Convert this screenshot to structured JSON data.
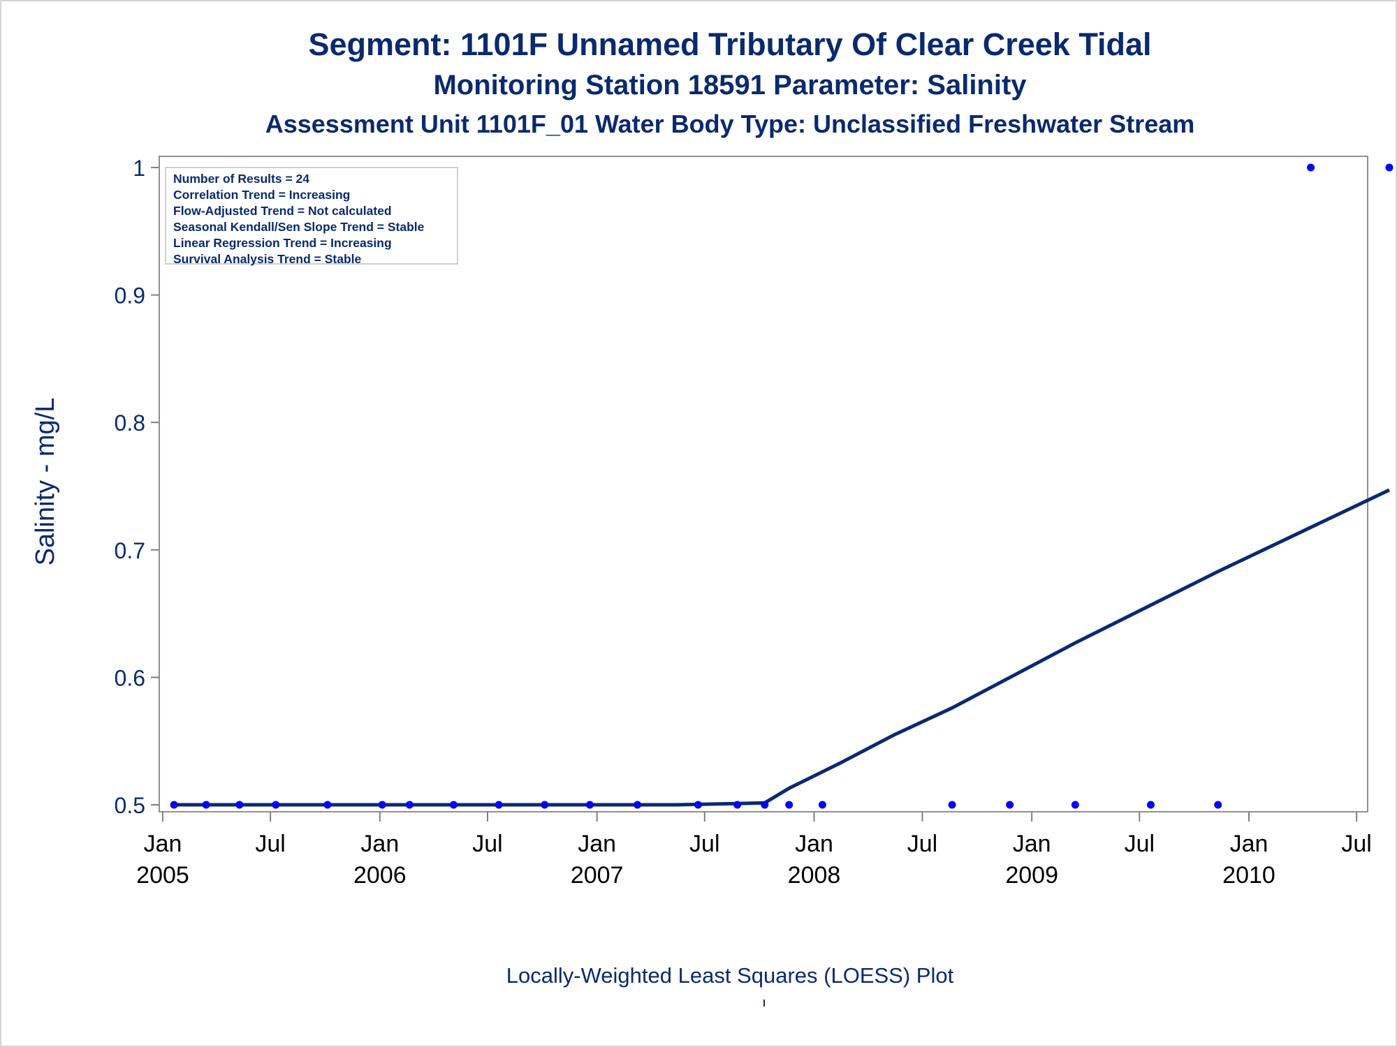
{
  "chart_data": {
    "type": "scatter",
    "title": "Segment: 1101F  Unnamed Tributary Of Clear Creek Tidal",
    "subtitle": "Monitoring Station 18591 Parameter: Salinity",
    "subtitle2": "Assessment Unit 1101F_01   Water Body Type: Unclassified Freshwater Stream",
    "xlabel": "",
    "ylabel": "Salinity - mg/L",
    "footnote": "Locally-Weighted Least Squares (LOESS) Plot",
    "ylim": [
      0.5,
      1.0
    ],
    "xlim": [
      "2005-01-01",
      "2010-07-01"
    ],
    "y_ticks": [
      "0.5",
      "0.6",
      "0.7",
      "0.8",
      "0.9",
      "1"
    ],
    "x_ticks": [
      {
        "date": "2005-01-01",
        "label1": "Jan",
        "label2": "2005"
      },
      {
        "date": "2005-07-01",
        "label1": "Jul",
        "label2": ""
      },
      {
        "date": "2006-01-01",
        "label1": "Jan",
        "label2": "2006"
      },
      {
        "date": "2006-07-01",
        "label1": "Jul",
        "label2": ""
      },
      {
        "date": "2007-01-01",
        "label1": "Jan",
        "label2": "2007"
      },
      {
        "date": "2007-07-01",
        "label1": "Jul",
        "label2": ""
      },
      {
        "date": "2008-01-01",
        "label1": "Jan",
        "label2": "2008"
      },
      {
        "date": "2008-07-01",
        "label1": "Jul",
        "label2": ""
      },
      {
        "date": "2009-01-01",
        "label1": "Jan",
        "label2": "2009"
      },
      {
        "date": "2009-07-01",
        "label1": "Jul",
        "label2": ""
      },
      {
        "date": "2010-01-01",
        "label1": "Jan",
        "label2": "2010"
      },
      {
        "date": "2010-07-01",
        "label1": "Jul",
        "label2": ""
      }
    ],
    "grid": false,
    "stats_box": {
      "placement": "top-left",
      "lines": [
        "Number of Results = 24",
        "Correlation Trend = Increasing",
        "Flow-Adjusted Trend = Not calculated",
        "Seasonal Kendall/Sen Slope Trend = Stable",
        "Linear Regression Trend = Increasing",
        "Survival Analysis Trend = Stable"
      ]
    },
    "series": [
      {
        "kind": "points",
        "color": "#0000ff",
        "points": [
          {
            "x": "2005-01-20",
            "y": 0.5
          },
          {
            "x": "2005-03-15",
            "y": 0.5
          },
          {
            "x": "2005-05-10",
            "y": 0.5
          },
          {
            "x": "2005-07-10",
            "y": 0.5
          },
          {
            "x": "2005-10-05",
            "y": 0.5
          },
          {
            "x": "2006-01-05",
            "y": 0.5
          },
          {
            "x": "2006-02-20",
            "y": 0.5
          },
          {
            "x": "2006-05-05",
            "y": 0.5
          },
          {
            "x": "2006-07-20",
            "y": 0.5
          },
          {
            "x": "2006-10-05",
            "y": 0.5
          },
          {
            "x": "2006-12-20",
            "y": 0.5
          },
          {
            "x": "2007-03-10",
            "y": 0.5
          },
          {
            "x": "2007-06-20",
            "y": 0.5
          },
          {
            "x": "2007-08-25",
            "y": 0.5
          },
          {
            "x": "2007-10-10",
            "y": 0.5
          },
          {
            "x": "2007-11-20",
            "y": 0.5
          },
          {
            "x": "2008-01-15",
            "y": 0.5
          },
          {
            "x": "2008-08-20",
            "y": 0.5
          },
          {
            "x": "2008-11-25",
            "y": 0.5
          },
          {
            "x": "2009-03-15",
            "y": 0.5
          },
          {
            "x": "2009-07-20",
            "y": 0.5
          },
          {
            "x": "2009-11-10",
            "y": 0.5
          },
          {
            "x": "2010-04-15",
            "y": 1.0
          },
          {
            "x": "2010-08-25",
            "y": 1.0
          }
        ]
      },
      {
        "kind": "line",
        "color": "#0a2a6e",
        "points": [
          {
            "x": "2005-01-20",
            "y": 0.5
          },
          {
            "x": "2007-05-15",
            "y": 0.5
          },
          {
            "x": "2007-08-25",
            "y": 0.501
          },
          {
            "x": "2007-10-10",
            "y": 0.5015
          },
          {
            "x": "2007-11-20",
            "y": 0.513
          },
          {
            "x": "2008-02-15",
            "y": 0.533
          },
          {
            "x": "2008-05-15",
            "y": 0.555
          },
          {
            "x": "2008-08-20",
            "y": 0.576
          },
          {
            "x": "2009-03-15",
            "y": 0.627
          },
          {
            "x": "2009-11-10",
            "y": 0.683
          },
          {
            "x": "2010-08-25",
            "y": 0.747
          }
        ]
      }
    ]
  }
}
